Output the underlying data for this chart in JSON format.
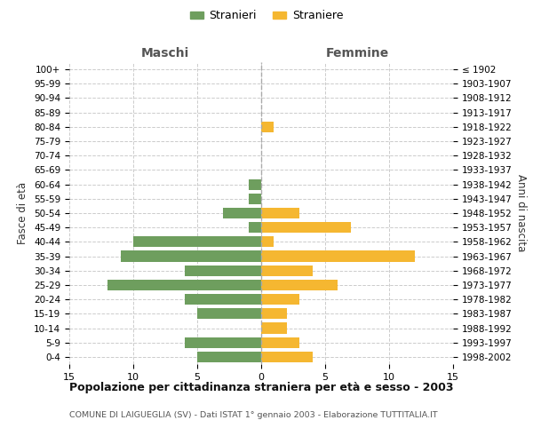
{
  "age_groups": [
    "0-4",
    "5-9",
    "10-14",
    "15-19",
    "20-24",
    "25-29",
    "30-34",
    "35-39",
    "40-44",
    "45-49",
    "50-54",
    "55-59",
    "60-64",
    "65-69",
    "70-74",
    "75-79",
    "80-84",
    "85-89",
    "90-94",
    "95-99",
    "100+"
  ],
  "birth_years": [
    "1998-2002",
    "1993-1997",
    "1988-1992",
    "1983-1987",
    "1978-1982",
    "1973-1977",
    "1968-1972",
    "1963-1967",
    "1958-1962",
    "1953-1957",
    "1948-1952",
    "1943-1947",
    "1938-1942",
    "1933-1937",
    "1928-1932",
    "1923-1927",
    "1918-1922",
    "1913-1917",
    "1908-1912",
    "1903-1907",
    "≤ 1902"
  ],
  "maschi": [
    5,
    6,
    0,
    5,
    6,
    12,
    6,
    11,
    10,
    1,
    3,
    1,
    1,
    0,
    0,
    0,
    0,
    0,
    0,
    0,
    0
  ],
  "femmine": [
    4,
    3,
    2,
    2,
    3,
    6,
    4,
    12,
    1,
    7,
    3,
    0,
    0,
    0,
    0,
    0,
    1,
    0,
    0,
    0,
    0
  ],
  "maschi_color": "#6e9e5e",
  "femmine_color": "#f5b731",
  "background_color": "#ffffff",
  "grid_color": "#cccccc",
  "title": "Popolazione per cittadinanza straniera per età e sesso - 2003",
  "subtitle": "COMUNE DI LAIGUEGLIA (SV) - Dati ISTAT 1° gennaio 2003 - Elaborazione TUTTITALIA.IT",
  "xlabel_left": "Maschi",
  "xlabel_right": "Femmine",
  "ylabel_left": "Fasce di età",
  "ylabel_right": "Anni di nascita",
  "xlim": 15,
  "legend_stranieri": "Stranieri",
  "legend_straniere": "Straniere"
}
